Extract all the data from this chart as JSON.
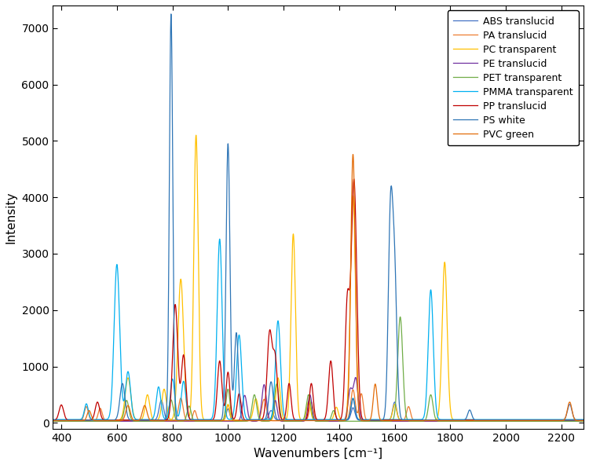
{
  "title": "",
  "xlabel": "Wavenumbers [cm⁻¹]",
  "ylabel": "Intensity",
  "xlim": [
    370,
    2280
  ],
  "ylim": [
    -100,
    7400
  ],
  "yticks": [
    0,
    1000,
    2000,
    3000,
    4000,
    5000,
    6000,
    7000
  ],
  "xticks": [
    400,
    600,
    800,
    1000,
    1200,
    1400,
    1600,
    1800,
    2000,
    2200
  ],
  "figsize": [
    7.5,
    5.92
  ],
  "dpi": 100,
  "background": "#ffffff"
}
